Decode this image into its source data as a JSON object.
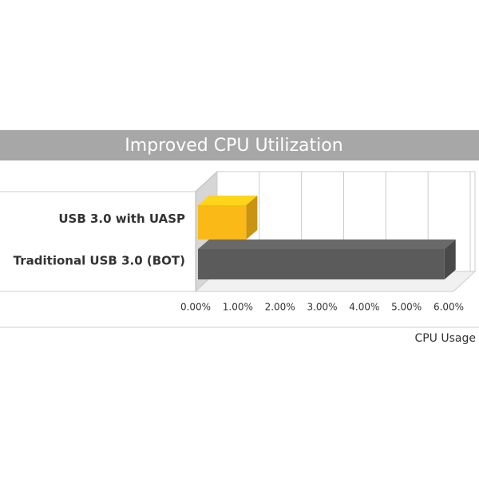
{
  "chart_data": {
    "type": "bar3d-horizontal",
    "title": "Improved CPU Utilization",
    "categories": [
      "USB 3.0 with UASP",
      "Traditional USB 3.0 (BOT)"
    ],
    "series": [
      {
        "name": null,
        "values": [
          1.2,
          5.9
        ]
      }
    ],
    "colors": [
      "#fbb917",
      "#5b5b5b"
    ],
    "xlim": [
      0,
      6
    ],
    "xticks": [
      {
        "value": 0,
        "label": "0.00%"
      },
      {
        "value": 1,
        "label": "1.00%"
      },
      {
        "value": 2,
        "label": "2.00%"
      },
      {
        "value": 3,
        "label": "3.00%"
      },
      {
        "value": 4,
        "label": "4.00%"
      },
      {
        "value": 5,
        "label": "5.00%"
      },
      {
        "value": 6,
        "label": "6.00%"
      }
    ],
    "x_label": "CPU Usage",
    "grid": true
  }
}
